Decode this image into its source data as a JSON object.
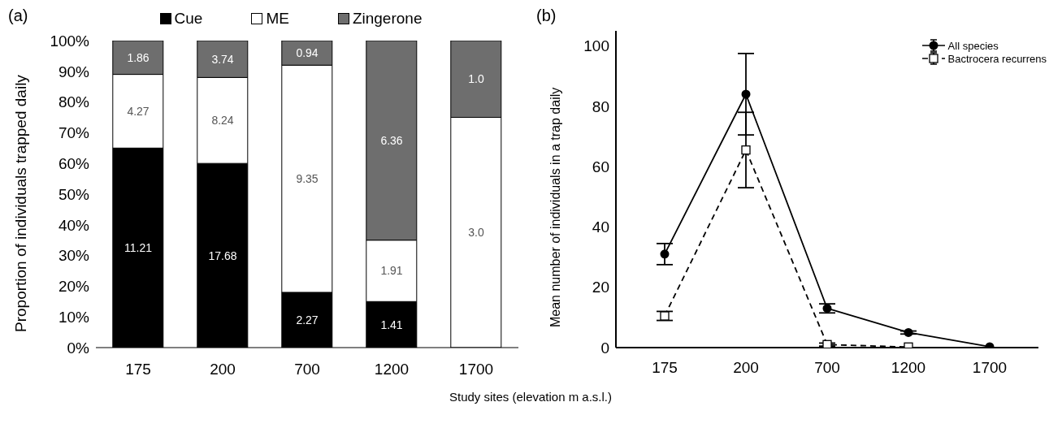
{
  "chart_data": [
    {
      "type": "bar",
      "title": "(a)",
      "ylabel": "Proportion of individuals  trapped daily",
      "stacked": true,
      "legend": "top",
      "categories": [
        "175",
        "200",
        "700",
        "1200",
        "1700"
      ],
      "ylim": [
        0,
        100
      ],
      "yticks": [
        {
          "value": 0,
          "label": "0%"
        },
        {
          "value": 10,
          "label": "10%"
        },
        {
          "value": 20,
          "label": "20%"
        },
        {
          "value": 30,
          "label": "30%"
        },
        {
          "value": 40,
          "label": "40%"
        },
        {
          "value": 50,
          "label": "50%"
        },
        {
          "value": 60,
          "label": "60%"
        },
        {
          "value": 70,
          "label": "70%"
        },
        {
          "value": 80,
          "label": "80%"
        },
        {
          "value": 90,
          "label": "90%"
        },
        {
          "value": 100,
          "label": "100%"
        }
      ],
      "grid": false,
      "series": [
        {
          "name": "Cue",
          "color": "#000000",
          "values": [
            65,
            60,
            18,
            15,
            0
          ]
        },
        {
          "name": "ME",
          "color": "#ffffff",
          "values": [
            24,
            28,
            74,
            20,
            75
          ]
        },
        {
          "name": "Zingerone",
          "color": "#6e6e6e",
          "values": [
            11,
            12,
            8,
            65,
            25
          ]
        }
      ],
      "annotations": [
        "11.21",
        "4.27",
        "1.86",
        "17.68",
        "8.24",
        "3.74",
        "2.27",
        "9.35",
        "0.94",
        "1.41",
        "1.91",
        "6.36",
        "3.0",
        "1.0"
      ]
    },
    {
      "type": "line",
      "title": "(b)",
      "ylabel": "Mean number of individuals in a trap daily",
      "xlabel": "Study sites (elevation m a.s.l.)",
      "legend": "top right",
      "categories": [
        "175",
        "200",
        "700",
        "1200",
        "1700"
      ],
      "ylim": [
        0,
        105
      ],
      "yticks": [
        0,
        20,
        40,
        60,
        80,
        100
      ],
      "grid": false,
      "series": [
        {
          "name": "All species",
          "color": "#000000",
          "marker": "circle",
          "line_style": "solid",
          "values": [
            31,
            84,
            13,
            5,
            0.3
          ],
          "errors": [
            3.5,
            13.5,
            1.5,
            0.5,
            null
          ]
        },
        {
          "name": "Bactrocera recurrens",
          "color": "#000000",
          "marker": "square",
          "line_style": "dashed",
          "values": [
            10.5,
            65.5,
            1,
            0.2,
            null
          ],
          "errors": [
            1.5,
            12.5,
            0.5,
            null,
            null
          ]
        }
      ]
    }
  ]
}
